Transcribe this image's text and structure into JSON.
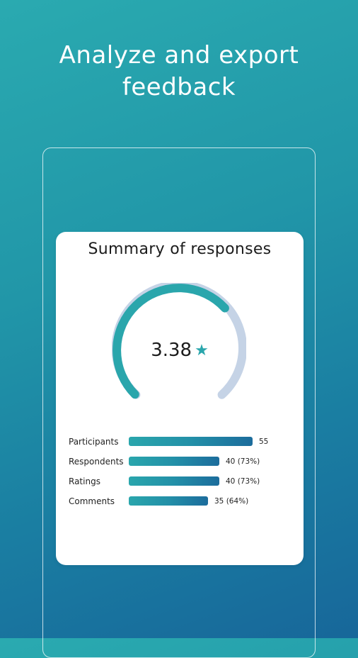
{
  "headline": {
    "line1": "Analyze and export",
    "line2": "feedback"
  },
  "summary": {
    "title": "Summary of responses",
    "average_rating": "3.38",
    "rating_max": 5,
    "star_icon": "star-icon",
    "stats": [
      {
        "label": "Participants",
        "value": "55",
        "fraction": 1.0
      },
      {
        "label": "Respondents",
        "value": "40 (73%)",
        "fraction": 0.73
      },
      {
        "label": "Ratings",
        "value": "40 (73%)",
        "fraction": 0.73
      },
      {
        "label": "Comments",
        "value": "35 (64%)",
        "fraction": 0.64
      }
    ]
  },
  "colors": {
    "accent": "#2aa6ac",
    "gauge_track": "#c5d3e6",
    "bar_end": "#1c6c9c",
    "background_top": "#2aaab0",
    "background_bottom": "#17679a"
  }
}
